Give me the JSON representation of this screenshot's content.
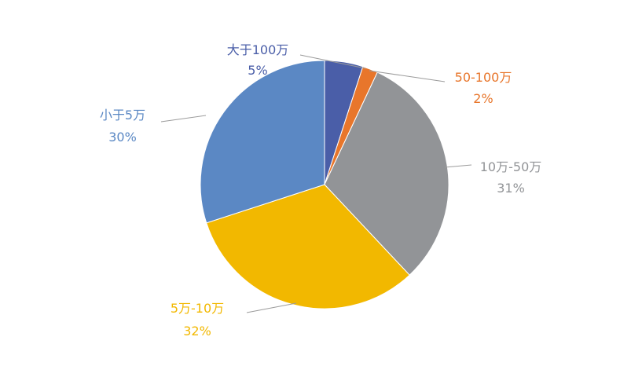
{
  "chart_data": {
    "type": "pie",
    "title": "",
    "slices": [
      {
        "label": "大于100万",
        "value": 5,
        "value_label": "5%",
        "color": "#4a5ea8"
      },
      {
        "label": "50-100万",
        "value": 2,
        "value_label": "2%",
        "color": "#e8762b"
      },
      {
        "label": "10万-50万",
        "value": 31,
        "value_label": "31%",
        "color": "#929497"
      },
      {
        "label": "5万-10万",
        "value": 32,
        "value_label": "32%",
        "color": "#f2b800"
      },
      {
        "label": "小于5万",
        "value": 30,
        "value_label": "30%",
        "color": "#5b88c4"
      }
    ],
    "start_angle_deg": 0,
    "direction": "clockwise",
    "legend": "none",
    "leader_line_color": "#9b9b9b"
  }
}
